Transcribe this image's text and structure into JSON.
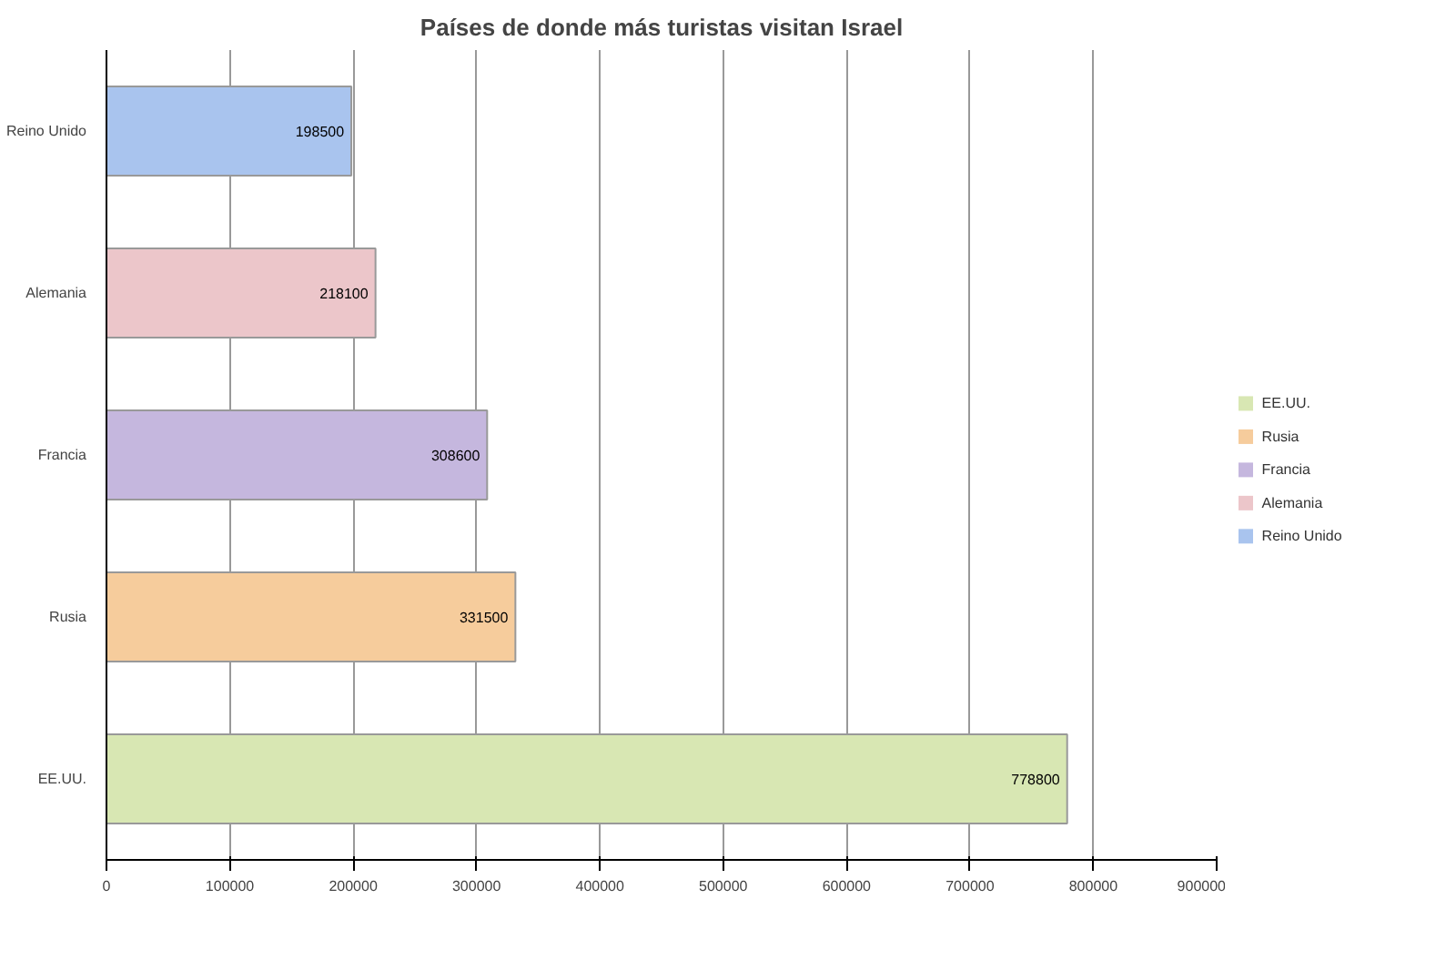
{
  "chart_data": {
    "type": "bar",
    "orientation": "horizontal",
    "title": "Países de donde más turistas visitan Israel",
    "categories": [
      "Reino Unido",
      "Alemania",
      "Francia",
      "Rusia",
      "EE.UU."
    ],
    "series": [
      {
        "name": "EE.UU.",
        "color": "#d8e7b3",
        "values": [
          null,
          null,
          null,
          null,
          778800
        ]
      },
      {
        "name": "Rusia",
        "color": "#f6cc9c",
        "values": [
          null,
          null,
          null,
          331500,
          null
        ]
      },
      {
        "name": "Francia",
        "color": "#c5b7de",
        "values": [
          null,
          null,
          308600,
          null,
          null
        ]
      },
      {
        "name": "Alemania",
        "color": "#ecc6ca",
        "values": [
          null,
          218100,
          null,
          null,
          null
        ]
      },
      {
        "name": "Reino Unido",
        "color": "#a9c4ee",
        "values": [
          198500,
          null,
          null,
          null,
          null
        ]
      }
    ],
    "xlim": [
      0,
      900000
    ],
    "xticks": [
      0,
      100000,
      200000,
      300000,
      400000,
      500000,
      600000,
      700000,
      800000,
      900000
    ],
    "grid": "x",
    "legend": "right",
    "data_labels": true
  }
}
